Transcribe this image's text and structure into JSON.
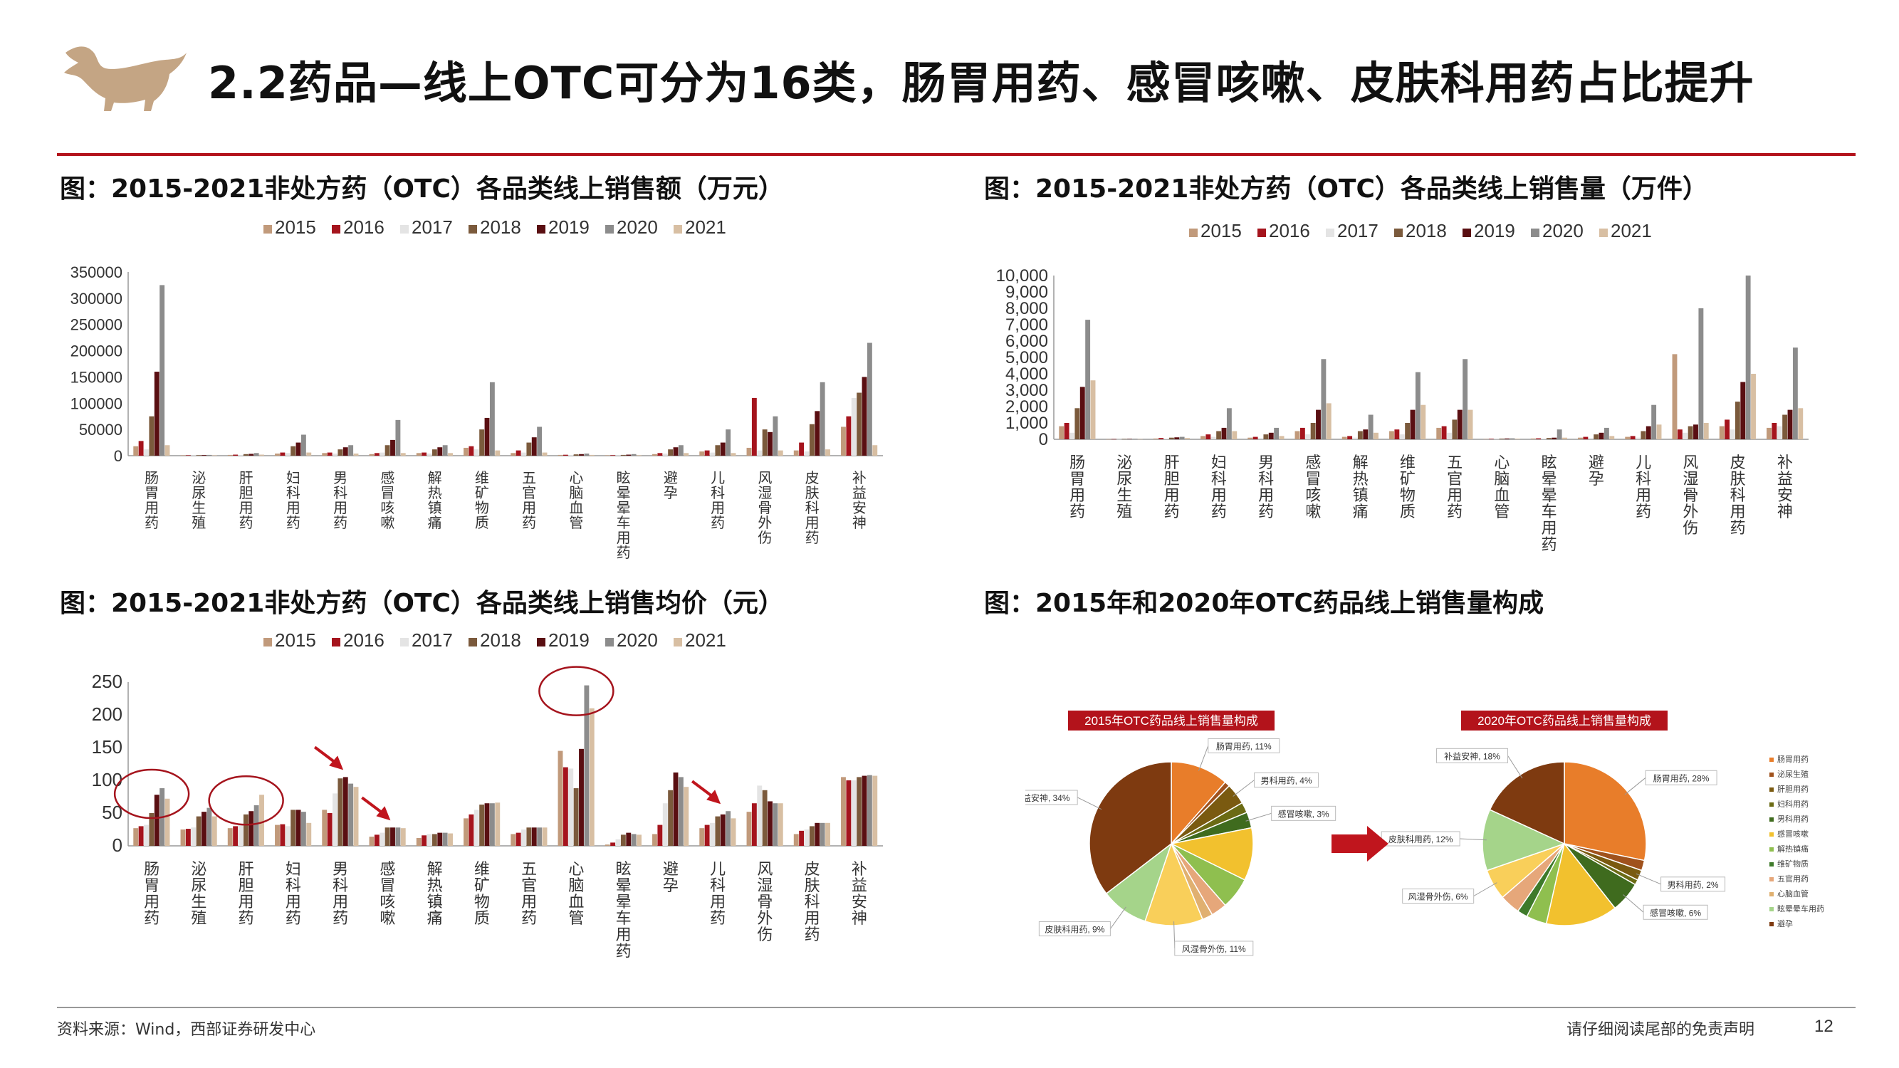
{
  "header": {
    "title": "2.2药品—线上OTC可分为16类，肠胃用药、感冒咳嗽、皮肤科用药占比提升"
  },
  "colors": {
    "accent": "#b3131b",
    "logo": "#c4a584",
    "series": [
      "#c19a7b",
      "#a5141d",
      "#e4e4e4",
      "#7b5a3c",
      "#5a0f12",
      "#8c8c8c",
      "#d8bfa3"
    ]
  },
  "footer": {
    "source": "资料来源：Wind，西部证券研发中心",
    "disclaimer": "请仔细阅读尾部的免责声明",
    "page": "12"
  },
  "chart_data": [
    {
      "type": "bar",
      "title": "图：2015-2021非处方药（OTC）各品类线上销售额（万元）",
      "legend": [
        "2015",
        "2016",
        "2017",
        "2018",
        "2019",
        "2020",
        "2021"
      ],
      "legend_position": "top",
      "categories": [
        "肠胃用药",
        "泌尿生殖",
        "肝胆用药",
        "妇科用药",
        "男科用药",
        "感冒咳嗽",
        "解热镇痛",
        "维矿物质",
        "五官用药",
        "心脑血管",
        "眩晕晕车用药",
        "避孕",
        "儿科用药",
        "风湿骨外伤",
        "皮肤科用药",
        "补益安神"
      ],
      "yticks": [
        "0",
        "50000",
        "100000",
        "150000",
        "200000",
        "250000",
        "300000",
        "350000"
      ],
      "ylim": [
        0,
        350000
      ],
      "series": [
        {
          "name": "2015",
          "values": [
            18000,
            800,
            1500,
            4000,
            5000,
            3000,
            5000,
            15000,
            5000,
            1500,
            800,
            3000,
            8000,
            15000,
            10000,
            55000
          ]
        },
        {
          "name": "2016",
          "values": [
            28000,
            900,
            2000,
            6000,
            6000,
            5000,
            6000,
            18000,
            10000,
            1800,
            1000,
            5000,
            10000,
            110000,
            25000,
            75000
          ]
        },
        {
          "name": "2017",
          "values": [
            12000,
            700,
            1500,
            5000,
            4000,
            6000,
            4000,
            12000,
            6000,
            1500,
            800,
            4000,
            6000,
            10000,
            8000,
            110000
          ]
        },
        {
          "name": "2018",
          "values": [
            75000,
            1000,
            3000,
            18000,
            12000,
            20000,
            12000,
            50000,
            25000,
            2500,
            1500,
            12000,
            20000,
            50000,
            60000,
            120000
          ]
        },
        {
          "name": "2019",
          "values": [
            160000,
            1200,
            3500,
            25000,
            16000,
            30000,
            16000,
            72000,
            35000,
            3000,
            2000,
            16000,
            25000,
            45000,
            85000,
            150000
          ]
        },
        {
          "name": "2020",
          "values": [
            325000,
            1500,
            5000,
            40000,
            20000,
            68000,
            20000,
            140000,
            55000,
            4000,
            3000,
            20000,
            50000,
            75000,
            140000,
            215000
          ]
        },
        {
          "name": "2021",
          "values": [
            20000,
            800,
            2000,
            6000,
            4000,
            5000,
            5000,
            10000,
            6000,
            1500,
            1000,
            5000,
            5000,
            10000,
            12000,
            20000
          ]
        }
      ]
    },
    {
      "type": "bar",
      "title": "图：2015-2021非处方药（OTC）各品类线上销售量（万件）",
      "legend": [
        "2015",
        "2016",
        "2017",
        "2018",
        "2019",
        "2020",
        "2021"
      ],
      "legend_position": "top",
      "categories": [
        "肠胃用药",
        "泌尿生殖",
        "肝胆用药",
        "妇科用药",
        "男科用药",
        "感冒咳嗽",
        "解热镇痛",
        "维矿物质",
        "五官用药",
        "心脑血管",
        "眩晕晕车用药",
        "避孕",
        "儿科用药",
        "风湿骨外伤",
        "皮肤科用药",
        "补益安神"
      ],
      "yticks": [
        "0",
        "1,000",
        "2,000",
        "3,000",
        "4,000",
        "5,000",
        "6,000",
        "7,000",
        "8,000",
        "9,000",
        "10,000"
      ],
      "ylim": [
        0,
        10000
      ],
      "series": [
        {
          "name": "2015",
          "values": [
            800,
            10,
            50,
            200,
            100,
            500,
            150,
            500,
            700,
            20,
            50,
            100,
            150,
            5200,
            800,
            700
          ]
        },
        {
          "name": "2016",
          "values": [
            1000,
            15,
            80,
            300,
            150,
            700,
            200,
            600,
            800,
            30,
            60,
            150,
            200,
            600,
            1200,
            1000
          ]
        },
        {
          "name": "2017",
          "values": [
            400,
            10,
            40,
            150,
            80,
            300,
            100,
            300,
            400,
            20,
            40,
            80,
            100,
            400,
            600,
            800
          ]
        },
        {
          "name": "2018",
          "values": [
            1900,
            20,
            100,
            500,
            300,
            1000,
            500,
            1000,
            1200,
            40,
            80,
            300,
            500,
            800,
            2300,
            1500
          ]
        },
        {
          "name": "2019",
          "values": [
            3200,
            25,
            120,
            700,
            400,
            1800,
            600,
            1800,
            1800,
            50,
            100,
            400,
            800,
            900,
            3500,
            1800
          ]
        },
        {
          "name": "2020",
          "values": [
            7300,
            30,
            150,
            1900,
            700,
            4900,
            1500,
            4100,
            4900,
            60,
            600,
            700,
            2100,
            8000,
            10000,
            5600
          ]
        },
        {
          "name": "2021",
          "values": [
            3600,
            15,
            80,
            500,
            200,
            2200,
            400,
            2100,
            1800,
            40,
            100,
            200,
            900,
            1000,
            4000,
            1900
          ]
        }
      ]
    },
    {
      "type": "bar",
      "title": "图：2015-2021非处方药（OTC）各品类线上销售均价（元）",
      "legend": [
        "2015",
        "2016",
        "2017",
        "2018",
        "2019",
        "2020",
        "2021"
      ],
      "legend_position": "top",
      "categories": [
        "肠胃用药",
        "泌尿生殖",
        "肝胆用药",
        "妇科用药",
        "男科用药",
        "感冒咳嗽",
        "解热镇痛",
        "维矿物质",
        "五官用药",
        "心脑血管",
        "眩晕晕车用药",
        "避孕",
        "儿科用药",
        "风湿骨外伤",
        "皮肤科用药",
        "补益安神"
      ],
      "yticks": [
        "0",
        "50",
        "100",
        "150",
        "200",
        "250"
      ],
      "ylim": [
        0,
        250
      ],
      "series": [
        {
          "name": "2015",
          "values": [
            27,
            25,
            27,
            32,
            55,
            14,
            12,
            42,
            18,
            145,
            2,
            18,
            27,
            52,
            18,
            105
          ]
        },
        {
          "name": "2016",
          "values": [
            30,
            26,
            30,
            33,
            50,
            17,
            16,
            48,
            20,
            120,
            5,
            32,
            32,
            65,
            23,
            100
          ]
        },
        {
          "name": "2017",
          "values": [
            32,
            28,
            34,
            30,
            80,
            20,
            18,
            55,
            25,
            118,
            10,
            65,
            35,
            92,
            25,
            100
          ]
        },
        {
          "name": "2018",
          "values": [
            50,
            45,
            48,
            55,
            103,
            28,
            18,
            63,
            28,
            88,
            17,
            85,
            45,
            85,
            30,
            105
          ]
        },
        {
          "name": "2019",
          "values": [
            78,
            52,
            53,
            55,
            105,
            28,
            20,
            65,
            28,
            148,
            20,
            112,
            48,
            68,
            35,
            107
          ]
        },
        {
          "name": "2020",
          "values": [
            88,
            58,
            62,
            52,
            95,
            28,
            20,
            65,
            28,
            245,
            18,
            105,
            53,
            65,
            35,
            108
          ]
        },
        {
          "name": "2021",
          "values": [
            72,
            45,
            78,
            35,
            90,
            27,
            19,
            66,
            28,
            210,
            17,
            90,
            42,
            65,
            35,
            107
          ]
        }
      ],
      "highlight_circles": [
        "肠胃用药",
        "肝胆用药",
        "心脑血管"
      ],
      "highlight_arrows": [
        "男科用药",
        "感冒咳嗽",
        "儿科用药"
      ]
    },
    {
      "type": "pie",
      "title": "图：2015年和2020年OTC药品线上销售量构成",
      "pies": [
        {
          "title": "2015年OTC药品线上销售量构成",
          "slices": [
            {
              "label": "肠胃用药, 11%",
              "value": 11,
              "color": "#e87d2a"
            },
            {
              "label": "",
              "value": 1,
              "color": "#a0521d"
            },
            {
              "label": "男科用药, 4%",
              "value": 4,
              "color": "#7a5a10"
            },
            {
              "label": "",
              "value": 2,
              "color": "#6b6b14"
            },
            {
              "label": "感冒咳嗽, 3%",
              "value": 3,
              "color": "#3f6b1e"
            },
            {
              "label": "",
              "value": 10,
              "color": "#f2c12e"
            },
            {
              "label": "",
              "value": 6,
              "color": "#8fbf4f"
            },
            {
              "label": "",
              "value": 3,
              "color": "#e6a77a"
            },
            {
              "label": "",
              "value": 2,
              "color": "#e0b070"
            },
            {
              "label": "风湿骨外伤, 11%",
              "value": 11,
              "color": "#f9cf5a"
            },
            {
              "label": "皮肤科用药, 9%",
              "value": 9,
              "color": "#a5d48a"
            },
            {
              "label": "补益安神, 34%",
              "value": 34,
              "color": "#7e3a10"
            }
          ]
        },
        {
          "title": "2020年OTC药品线上销售量构成",
          "slices": [
            {
              "label": "肠胃用药, 28%",
              "value": 28,
              "color": "#e87d2a"
            },
            {
              "label": "",
              "value": 2,
              "color": "#a0521d"
            },
            {
              "label": "男科用药, 2%",
              "value": 2,
              "color": "#7a5a10"
            },
            {
              "label": "",
              "value": 1,
              "color": "#6b6b14"
            },
            {
              "label": "感冒咳嗽, 6%",
              "value": 6,
              "color": "#3f6b1e"
            },
            {
              "label": "",
              "value": 14,
              "color": "#f2c12e"
            },
            {
              "label": "",
              "value": 4,
              "color": "#8fbf4f"
            },
            {
              "label": "",
              "value": 2,
              "color": "#3e7a2a"
            },
            {
              "label": "",
              "value": 4,
              "color": "#e6a77a"
            },
            {
              "label": "风湿骨外伤, 6%",
              "value": 6,
              "color": "#f9cf5a"
            },
            {
              "label": "皮肤科用药, 12%",
              "value": 12,
              "color": "#a5d48a"
            },
            {
              "label": "补益安神, 18%",
              "value": 18,
              "color": "#7e3a10"
            }
          ]
        }
      ],
      "legend": [
        "肠胃用药",
        "泌尿生殖",
        "肝胆用药",
        "妇科用药",
        "男科用药",
        "感冒咳嗽",
        "解热镇痛",
        "维矿物质",
        "五官用药",
        "心脑血管",
        "眩晕晕车用药",
        "避孕"
      ],
      "legend_colors": [
        "#e87d2a",
        "#a0521d",
        "#7a5a10",
        "#6b6b14",
        "#3f6b1e",
        "#f2c12e",
        "#8fbf4f",
        "#3e7a2a",
        "#e6a77a",
        "#e0b070",
        "#a5d48a",
        "#7e3a10"
      ]
    }
  ]
}
